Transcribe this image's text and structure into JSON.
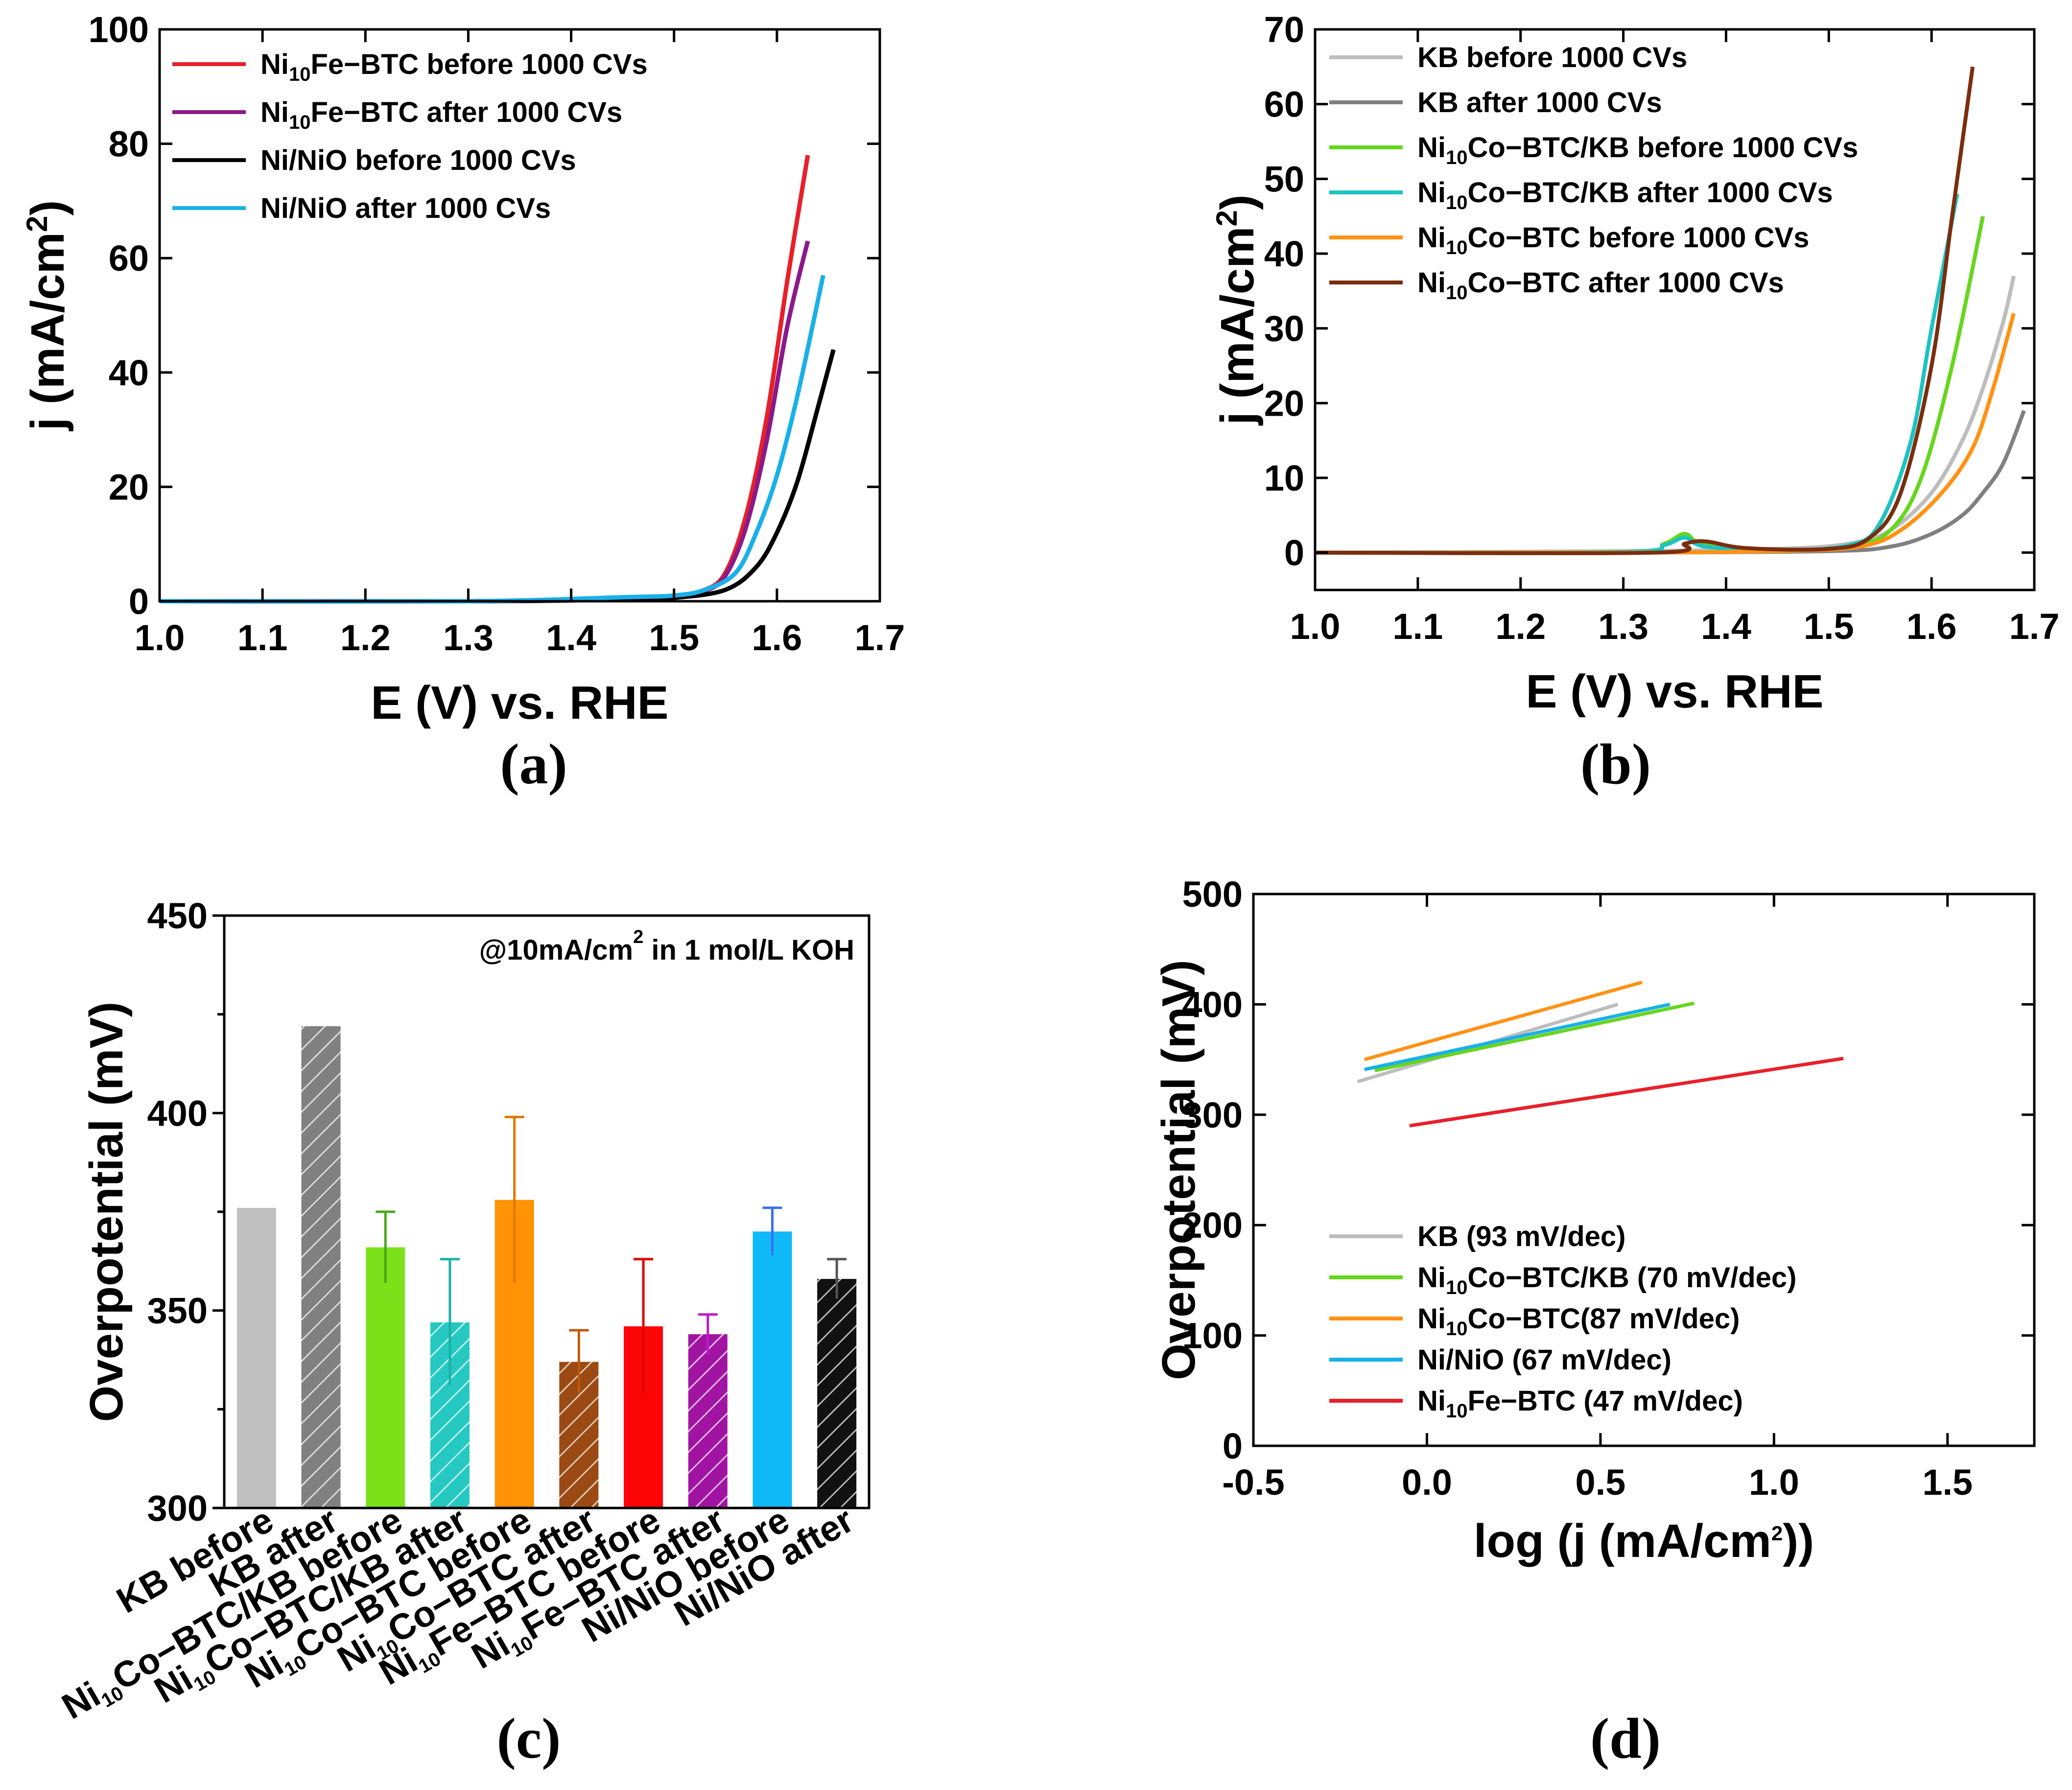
{
  "chart_data": [
    {
      "panel": "(a)",
      "type": "line",
      "xlabel": "E (V) vs. RHE",
      "ylabel": "j (mA/cm2)",
      "ylabel_parts": [
        "j (mA/cm",
        "2",
        ")"
      ],
      "xlim": [
        1.0,
        1.7
      ],
      "ylim": [
        0,
        100
      ],
      "xticks": [
        "1.0",
        "1.1",
        "1.2",
        "1.3",
        "1.4",
        "1.5",
        "1.6",
        "1.7"
      ],
      "yticks": [
        "0",
        "20",
        "40",
        "60",
        "80",
        "100"
      ],
      "series": [
        {
          "name": "Ni10Fe-BTC before 1000 CVs",
          "label_parts": [
            "Ni",
            "10",
            "Fe−BTC before 1000 CVs"
          ],
          "color": "#e8202a",
          "x": [
            1.0,
            1.3,
            1.45,
            1.5,
            1.53,
            1.55,
            1.57,
            1.59,
            1.61,
            1.63
          ],
          "y": [
            0,
            0,
            0.4,
            0.9,
            2,
            5,
            15,
            32,
            56,
            78
          ]
        },
        {
          "name": "Ni10Fe-BTC after 1000 CVs",
          "label_parts": [
            "Ni",
            "10",
            "Fe−BTC after 1000 CVs"
          ],
          "color": "#8b1a89",
          "x": [
            1.0,
            1.3,
            1.45,
            1.5,
            1.53,
            1.55,
            1.57,
            1.59,
            1.61,
            1.63
          ],
          "y": [
            0,
            0,
            0.3,
            0.8,
            1.8,
            4.5,
            13,
            28,
            48,
            63
          ]
        },
        {
          "name": "Ni/NiO before 1000 CVs",
          "label_parts": [
            "Ni/NiO before 1000 CVs",
            "",
            ""
          ],
          "color": "#000000",
          "x": [
            1.0,
            1.3,
            1.45,
            1.5,
            1.55,
            1.58,
            1.6,
            1.62,
            1.64,
            1.655
          ],
          "y": [
            0,
            0,
            0.3,
            0.6,
            2,
            6,
            12,
            21,
            34,
            44
          ]
        },
        {
          "name": "Ni/NiO after 1000 CVs",
          "label_parts": [
            "Ni/NiO after 1000 CVs",
            "",
            ""
          ],
          "color": "#1ab0e8",
          "x": [
            1.0,
            1.3,
            1.45,
            1.5,
            1.53,
            1.56,
            1.58,
            1.6,
            1.62,
            1.645
          ],
          "y": [
            0,
            0,
            0.7,
            1,
            2,
            5,
            12,
            22,
            36,
            57
          ]
        }
      ]
    },
    {
      "panel": "(b)",
      "type": "line",
      "xlabel": "E (V) vs. RHE",
      "ylabel": "j (mA/cm2)",
      "ylabel_parts": [
        "j (mA/cm",
        "2",
        ")"
      ],
      "xlim": [
        1.0,
        1.7
      ],
      "ylim": [
        -5,
        70
      ],
      "xticks": [
        "1.0",
        "1.1",
        "1.2",
        "1.3",
        "1.4",
        "1.5",
        "1.6",
        "1.7"
      ],
      "yticks": [
        "0",
        "10",
        "20",
        "30",
        "40",
        "50",
        "60",
        "70"
      ],
      "series": [
        {
          "name": "KB before 1000 CVs",
          "label_parts": [
            "KB before 1000 CVs",
            "",
            ""
          ],
          "color": "#bdbdbd",
          "x": [
            1.0,
            1.3,
            1.45,
            1.52,
            1.56,
            1.6,
            1.63,
            1.65,
            1.67,
            1.68
          ],
          "y": [
            0,
            0.2,
            0.5,
            1.2,
            3,
            8,
            15,
            22,
            31,
            37
          ]
        },
        {
          "name": "KB after 1000 CVs",
          "label_parts": [
            "KB after 1000 CVs",
            "",
            ""
          ],
          "color": "#808080",
          "x": [
            1.0,
            1.3,
            1.5,
            1.56,
            1.6,
            1.63,
            1.65,
            1.67,
            1.69
          ],
          "y": [
            0,
            0,
            0.2,
            0.8,
            2.5,
            5,
            8,
            12,
            19
          ]
        },
        {
          "name": "Ni10Co-BTC/KB before 1000 CVs",
          "label_parts": [
            "Ni",
            "10",
            "Co−BTC/KB before 1000 CVs"
          ],
          "color": "#66d61e",
          "x": [
            1.0,
            1.3,
            1.34,
            1.36,
            1.38,
            1.45,
            1.52,
            1.56,
            1.59,
            1.62,
            1.65
          ],
          "y": [
            0,
            0.1,
            1.2,
            2.5,
            1,
            0.4,
            0.8,
            3,
            10,
            25,
            45
          ]
        },
        {
          "name": "Ni10Co-BTC/KB after 1000 CVs",
          "label_parts": [
            "Ni",
            "10",
            "Co−BTC/KB after 1000 CVs"
          ],
          "color": "#1cc3c3",
          "x": [
            1.0,
            1.3,
            1.34,
            1.36,
            1.38,
            1.45,
            1.52,
            1.55,
            1.58,
            1.6,
            1.625
          ],
          "y": [
            0,
            0.1,
            1,
            2,
            0.8,
            0.3,
            1,
            4,
            15,
            30,
            48
          ]
        },
        {
          "name": "Ni10Co-BTC before 1000 CVs",
          "label_parts": [
            "Ni",
            "10",
            "Co−BTC before 1000 CVs"
          ],
          "color": "#ff9214",
          "x": [
            1.0,
            1.3,
            1.45,
            1.53,
            1.57,
            1.61,
            1.64,
            1.66,
            1.68
          ],
          "y": [
            0,
            0,
            0.2,
            0.8,
            3,
            8,
            14,
            22,
            32
          ]
        },
        {
          "name": "Ni10Co-BTC after 1000 CVs",
          "label_parts": [
            "Ni",
            "10",
            "Co−BTC after 1000 CVs"
          ],
          "color": "#7a2e0e",
          "x": [
            1.0,
            1.33,
            1.36,
            1.38,
            1.42,
            1.5,
            1.54,
            1.57,
            1.6,
            1.62,
            1.64
          ],
          "y": [
            0,
            0,
            1.2,
            1.5,
            0.6,
            0.5,
            2,
            8,
            25,
            45,
            65
          ]
        }
      ]
    },
    {
      "panel": "(c)",
      "type": "bar",
      "ylabel": "Overpotential (mV)",
      "ylim": [
        300,
        450
      ],
      "yticks": [
        "300",
        "350",
        "400",
        "450"
      ],
      "annotation_parts": [
        "@10mA/cm",
        "2",
        " in 1 mol/L KOH"
      ],
      "categories": [
        {
          "name": "KB before",
          "parts": [
            "KB before",
            "",
            ""
          ]
        },
        {
          "name": "KB after",
          "parts": [
            "KB after",
            "",
            ""
          ]
        },
        {
          "name": "Ni10Co-BTC/KB before",
          "parts": [
            "Ni",
            "10",
            "Co−BTC/KB before"
          ]
        },
        {
          "name": "Ni10Co-BTC/KB after",
          "parts": [
            "Ni",
            "10",
            "Co−BTC/KB after"
          ]
        },
        {
          "name": "Ni10Co-BTC before",
          "parts": [
            "Ni",
            "10",
            "Co−BTC before"
          ]
        },
        {
          "name": "Ni10Co-BTC after",
          "parts": [
            "Ni",
            "10",
            "Co−BTC after"
          ]
        },
        {
          "name": "Ni10Fe-BTC before",
          "parts": [
            "Ni",
            "10",
            "Fe−BTC before"
          ]
        },
        {
          "name": "Ni10Fe-BTC after",
          "parts": [
            "Ni",
            "10",
            "Fe−BTC after"
          ]
        },
        {
          "name": "Ni/NiO before",
          "parts": [
            "Ni/NiO before",
            "",
            ""
          ]
        },
        {
          "name": "Ni/NiO after",
          "parts": [
            "Ni/NiO after",
            "",
            ""
          ]
        }
      ],
      "values": [
        376,
        422,
        366,
        347,
        378,
        337,
        346,
        344,
        370,
        358
      ],
      "errors": [
        0,
        0,
        9,
        16,
        21,
        8,
        17,
        5,
        6,
        5
      ],
      "colors": [
        "#c0c0c0",
        "#808080",
        "#7de11a",
        "#25c9c1",
        "#ff9205",
        "#9a4a12",
        "#fc0505",
        "#a114a2",
        "#10b9f7",
        "#111111"
      ],
      "error_colors": [
        "#c0c0c0",
        "#808080",
        "#4aa61a",
        "#1cb0a8",
        "#e07800",
        "#c0580c",
        "#e00000",
        "#c018c8",
        "#3a6ff0",
        "#555555"
      ],
      "hatched": [
        false,
        true,
        false,
        true,
        false,
        true,
        false,
        true,
        false,
        true
      ]
    },
    {
      "panel": "(d)",
      "type": "line",
      "xlabel": "log (j (mA/cm2))",
      "xlabel_parts": [
        "log (j (mA/cm",
        "2",
        "))"
      ],
      "ylabel": "Overpotential (mV)",
      "xlim": [
        -0.5,
        1.75
      ],
      "ylim": [
        0,
        500
      ],
      "xticks": [
        "-0.5",
        "0.0",
        "0.5",
        "1.0",
        "1.5"
      ],
      "yticks": [
        "0",
        "100",
        "200",
        "300",
        "400",
        "500"
      ],
      "series": [
        {
          "name": "KB (93 mV/dec)",
          "label_parts": [
            "KB (93 mV/dec)",
            "",
            ""
          ],
          "color": "#bdbdbd",
          "x": [
            -0.2,
            0.55
          ],
          "y": [
            330,
            400
          ]
        },
        {
          "name": "Ni10Co-BTC/KB (70 mV/dec)",
          "label_parts": [
            "Ni",
            "10",
            "Co−BTC/KB (70 mV/dec)"
          ],
          "color": "#66d61e",
          "x": [
            -0.15,
            0.77
          ],
          "y": [
            340,
            401
          ]
        },
        {
          "name": "Ni10Co-BTC(87 mV/dec)",
          "label_parts": [
            "Ni",
            "10",
            "Co−BTC(87 mV/dec)"
          ],
          "color": "#ff9214",
          "x": [
            -0.18,
            0.62
          ],
          "y": [
            350,
            420
          ]
        },
        {
          "name": "Ni/NiO (67 mV/dec)",
          "label_parts": [
            "Ni/NiO (67 mV/dec)",
            "",
            ""
          ],
          "color": "#1ab0e8",
          "x": [
            -0.18,
            0.7
          ],
          "y": [
            341,
            400
          ]
        },
        {
          "name": "Ni10Fe-BTC (47 mV/dec)",
          "label_parts": [
            "Ni",
            "10",
            "Fe−BTC (47 mV/dec)"
          ],
          "color": "#e8202a",
          "x": [
            -0.05,
            1.2
          ],
          "y": [
            290,
            351
          ]
        }
      ]
    }
  ],
  "panel_labels": [
    "(a)",
    "(b)",
    "(c)",
    "(d)"
  ]
}
